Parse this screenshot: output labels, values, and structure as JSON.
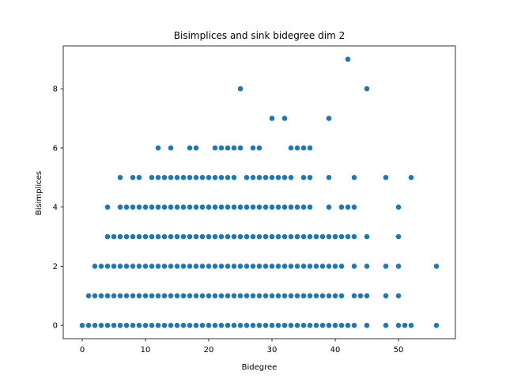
{
  "chart_data": {
    "type": "scatter",
    "title": "Bisimplices and sink bidegree dim 2",
    "xlabel": "Bidegree",
    "ylabel": "Bisimplices",
    "xlim": [
      -3,
      59
    ],
    "ylim": [
      -0.45,
      9.45
    ],
    "xticks": [
      0,
      10,
      20,
      30,
      40,
      50
    ],
    "yticks": [
      0,
      2,
      4,
      6,
      8
    ],
    "grid": false,
    "marker_color": "#1f77b4",
    "points": [
      [
        0,
        0
      ],
      [
        1,
        0
      ],
      [
        2,
        0
      ],
      [
        3,
        0
      ],
      [
        4,
        0
      ],
      [
        5,
        0
      ],
      [
        6,
        0
      ],
      [
        7,
        0
      ],
      [
        8,
        0
      ],
      [
        9,
        0
      ],
      [
        10,
        0
      ],
      [
        11,
        0
      ],
      [
        12,
        0
      ],
      [
        13,
        0
      ],
      [
        14,
        0
      ],
      [
        15,
        0
      ],
      [
        16,
        0
      ],
      [
        17,
        0
      ],
      [
        18,
        0
      ],
      [
        19,
        0
      ],
      [
        20,
        0
      ],
      [
        21,
        0
      ],
      [
        22,
        0
      ],
      [
        23,
        0
      ],
      [
        24,
        0
      ],
      [
        25,
        0
      ],
      [
        26,
        0
      ],
      [
        27,
        0
      ],
      [
        28,
        0
      ],
      [
        29,
        0
      ],
      [
        30,
        0
      ],
      [
        31,
        0
      ],
      [
        32,
        0
      ],
      [
        33,
        0
      ],
      [
        34,
        0
      ],
      [
        35,
        0
      ],
      [
        36,
        0
      ],
      [
        37,
        0
      ],
      [
        38,
        0
      ],
      [
        39,
        0
      ],
      [
        40,
        0
      ],
      [
        41,
        0
      ],
      [
        42,
        0
      ],
      [
        43,
        0
      ],
      [
        45,
        0
      ],
      [
        48,
        0
      ],
      [
        50,
        0
      ],
      [
        51,
        0
      ],
      [
        52,
        0
      ],
      [
        56,
        0
      ],
      [
        1,
        1
      ],
      [
        2,
        1
      ],
      [
        3,
        1
      ],
      [
        4,
        1
      ],
      [
        5,
        1
      ],
      [
        6,
        1
      ],
      [
        7,
        1
      ],
      [
        8,
        1
      ],
      [
        9,
        1
      ],
      [
        10,
        1
      ],
      [
        11,
        1
      ],
      [
        12,
        1
      ],
      [
        13,
        1
      ],
      [
        14,
        1
      ],
      [
        15,
        1
      ],
      [
        16,
        1
      ],
      [
        17,
        1
      ],
      [
        18,
        1
      ],
      [
        19,
        1
      ],
      [
        20,
        1
      ],
      [
        21,
        1
      ],
      [
        22,
        1
      ],
      [
        23,
        1
      ],
      [
        24,
        1
      ],
      [
        25,
        1
      ],
      [
        26,
        1
      ],
      [
        27,
        1
      ],
      [
        28,
        1
      ],
      [
        29,
        1
      ],
      [
        30,
        1
      ],
      [
        31,
        1
      ],
      [
        32,
        1
      ],
      [
        33,
        1
      ],
      [
        34,
        1
      ],
      [
        35,
        1
      ],
      [
        36,
        1
      ],
      [
        37,
        1
      ],
      [
        38,
        1
      ],
      [
        39,
        1
      ],
      [
        40,
        1
      ],
      [
        41,
        1
      ],
      [
        43,
        1
      ],
      [
        44,
        1
      ],
      [
        45,
        1
      ],
      [
        48,
        1
      ],
      [
        50,
        1
      ],
      [
        2,
        2
      ],
      [
        3,
        2
      ],
      [
        4,
        2
      ],
      [
        5,
        2
      ],
      [
        6,
        2
      ],
      [
        7,
        2
      ],
      [
        8,
        2
      ],
      [
        9,
        2
      ],
      [
        10,
        2
      ],
      [
        11,
        2
      ],
      [
        12,
        2
      ],
      [
        13,
        2
      ],
      [
        14,
        2
      ],
      [
        15,
        2
      ],
      [
        16,
        2
      ],
      [
        17,
        2
      ],
      [
        18,
        2
      ],
      [
        19,
        2
      ],
      [
        20,
        2
      ],
      [
        21,
        2
      ],
      [
        22,
        2
      ],
      [
        23,
        2
      ],
      [
        24,
        2
      ],
      [
        25,
        2
      ],
      [
        26,
        2
      ],
      [
        27,
        2
      ],
      [
        28,
        2
      ],
      [
        29,
        2
      ],
      [
        30,
        2
      ],
      [
        31,
        2
      ],
      [
        32,
        2
      ],
      [
        33,
        2
      ],
      [
        34,
        2
      ],
      [
        35,
        2
      ],
      [
        36,
        2
      ],
      [
        37,
        2
      ],
      [
        38,
        2
      ],
      [
        39,
        2
      ],
      [
        40,
        2
      ],
      [
        41,
        2
      ],
      [
        43,
        2
      ],
      [
        45,
        2
      ],
      [
        48,
        2
      ],
      [
        50,
        2
      ],
      [
        56,
        2
      ],
      [
        4,
        3
      ],
      [
        5,
        3
      ],
      [
        6,
        3
      ],
      [
        7,
        3
      ],
      [
        8,
        3
      ],
      [
        9,
        3
      ],
      [
        10,
        3
      ],
      [
        11,
        3
      ],
      [
        12,
        3
      ],
      [
        13,
        3
      ],
      [
        14,
        3
      ],
      [
        15,
        3
      ],
      [
        16,
        3
      ],
      [
        17,
        3
      ],
      [
        18,
        3
      ],
      [
        19,
        3
      ],
      [
        20,
        3
      ],
      [
        21,
        3
      ],
      [
        22,
        3
      ],
      [
        23,
        3
      ],
      [
        24,
        3
      ],
      [
        25,
        3
      ],
      [
        26,
        3
      ],
      [
        27,
        3
      ],
      [
        28,
        3
      ],
      [
        29,
        3
      ],
      [
        30,
        3
      ],
      [
        31,
        3
      ],
      [
        32,
        3
      ],
      [
        33,
        3
      ],
      [
        34,
        3
      ],
      [
        35,
        3
      ],
      [
        36,
        3
      ],
      [
        37,
        3
      ],
      [
        38,
        3
      ],
      [
        39,
        3
      ],
      [
        40,
        3
      ],
      [
        41,
        3
      ],
      [
        42,
        3
      ],
      [
        43,
        3
      ],
      [
        45,
        3
      ],
      [
        50,
        3
      ],
      [
        4,
        4
      ],
      [
        6,
        4
      ],
      [
        7,
        4
      ],
      [
        8,
        4
      ],
      [
        9,
        4
      ],
      [
        10,
        4
      ],
      [
        11,
        4
      ],
      [
        12,
        4
      ],
      [
        13,
        4
      ],
      [
        14,
        4
      ],
      [
        15,
        4
      ],
      [
        16,
        4
      ],
      [
        17,
        4
      ],
      [
        18,
        4
      ],
      [
        19,
        4
      ],
      [
        20,
        4
      ],
      [
        21,
        4
      ],
      [
        22,
        4
      ],
      [
        23,
        4
      ],
      [
        24,
        4
      ],
      [
        25,
        4
      ],
      [
        26,
        4
      ],
      [
        27,
        4
      ],
      [
        28,
        4
      ],
      [
        29,
        4
      ],
      [
        30,
        4
      ],
      [
        31,
        4
      ],
      [
        32,
        4
      ],
      [
        33,
        4
      ],
      [
        34,
        4
      ],
      [
        35,
        4
      ],
      [
        36,
        4
      ],
      [
        39,
        4
      ],
      [
        41,
        4
      ],
      [
        42,
        4
      ],
      [
        43,
        4
      ],
      [
        50,
        4
      ],
      [
        6,
        5
      ],
      [
        8,
        5
      ],
      [
        9,
        5
      ],
      [
        11,
        5
      ],
      [
        12,
        5
      ],
      [
        13,
        5
      ],
      [
        14,
        5
      ],
      [
        15,
        5
      ],
      [
        16,
        5
      ],
      [
        17,
        5
      ],
      [
        18,
        5
      ],
      [
        19,
        5
      ],
      [
        20,
        5
      ],
      [
        21,
        5
      ],
      [
        22,
        5
      ],
      [
        23,
        5
      ],
      [
        24,
        5
      ],
      [
        26,
        5
      ],
      [
        27,
        5
      ],
      [
        28,
        5
      ],
      [
        29,
        5
      ],
      [
        30,
        5
      ],
      [
        31,
        5
      ],
      [
        32,
        5
      ],
      [
        33,
        5
      ],
      [
        35,
        5
      ],
      [
        36,
        5
      ],
      [
        39,
        5
      ],
      [
        43,
        5
      ],
      [
        48,
        5
      ],
      [
        52,
        5
      ],
      [
        12,
        6
      ],
      [
        14,
        6
      ],
      [
        17,
        6
      ],
      [
        18,
        6
      ],
      [
        21,
        6
      ],
      [
        22,
        6
      ],
      [
        23,
        6
      ],
      [
        24,
        6
      ],
      [
        25,
        6
      ],
      [
        27,
        6
      ],
      [
        28,
        6
      ],
      [
        33,
        6
      ],
      [
        34,
        6
      ],
      [
        35,
        6
      ],
      [
        36,
        6
      ],
      [
        30,
        7
      ],
      [
        32,
        7
      ],
      [
        39,
        7
      ],
      [
        25,
        8
      ],
      [
        45,
        8
      ],
      [
        42,
        9
      ]
    ]
  }
}
